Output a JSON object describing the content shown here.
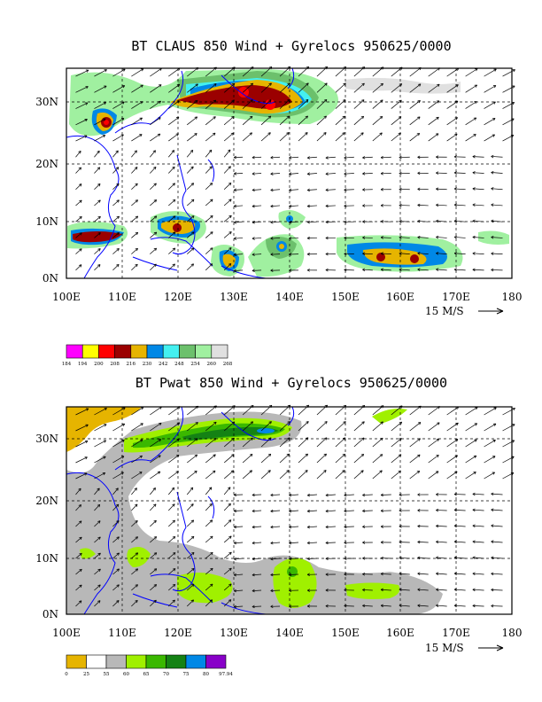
{
  "panels": [
    {
      "title": "BT CLAUS 850 Wind + Gyrelocs 950625/0000",
      "x_ticks": [
        "100E",
        "110E",
        "120E",
        "130E",
        "140E",
        "150E",
        "160E",
        "170E",
        "180"
      ],
      "y_ticks": [
        "0N",
        "10N",
        "20N",
        "30N"
      ],
      "vector_label": "15 M/S",
      "colorbar": {
        "labels": [
          "184",
          "194",
          "200",
          "208",
          "216",
          "230",
          "242",
          "248",
          "254",
          "260",
          "268"
        ],
        "colors": [
          "#ff00ff",
          "#ffff00",
          "#ff0000",
          "#9b0000",
          "#e6b400",
          "#0088e6",
          "#44f0f0",
          "#6cc06c",
          "#a0f0a0",
          "#e0e0e0"
        ]
      }
    },
    {
      "title": "BT Pwat 850 Wind + Gyrelocs 950625/0000",
      "x_ticks": [
        "100E",
        "110E",
        "120E",
        "130E",
        "140E",
        "150E",
        "160E",
        "170E",
        "180"
      ],
      "y_ticks": [
        "0N",
        "10N",
        "20N",
        "30N"
      ],
      "vector_label": "15 M/S",
      "colorbar": {
        "labels": [
          "0",
          "25",
          "55",
          "60",
          "65",
          "70",
          "75",
          "80",
          "97.94"
        ],
        "colors": [
          "#e6b400",
          "#ffffff",
          "#b8b8b8",
          "#a0f000",
          "#3ab800",
          "#148214",
          "#0088e6",
          "#8800c8"
        ]
      }
    }
  ],
  "colors": {
    "coastline": "#0000ff",
    "grid": "#000000",
    "vectors": "#000000"
  }
}
